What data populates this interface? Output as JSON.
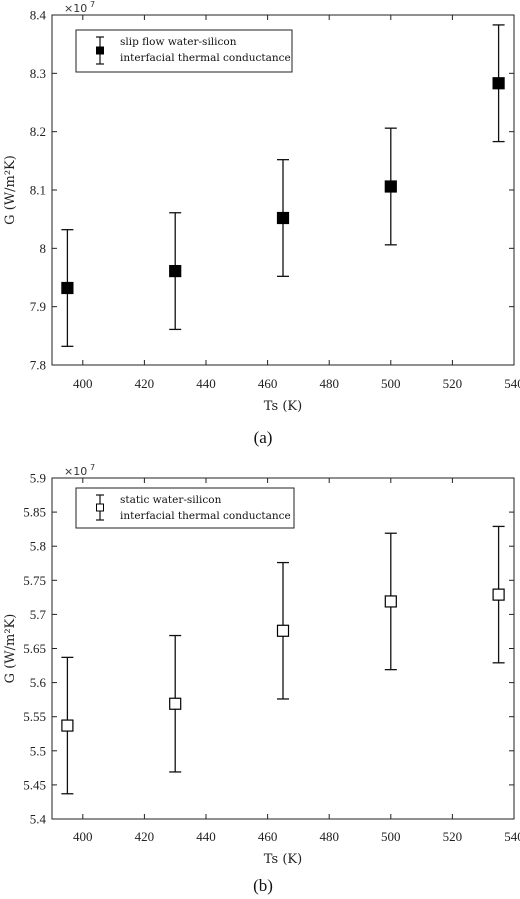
{
  "chart_data": [
    {
      "type": "scatter",
      "caption": "(a)",
      "ylabel": "G (W/m²K)",
      "xlabel": "Ts (K)",
      "multiplier": "×10",
      "multiplier_exp": "7",
      "xlim": [
        390,
        540
      ],
      "ylim": [
        7.8,
        8.4
      ],
      "xticks": [
        "400",
        "420",
        "440",
        "460",
        "480",
        "500",
        "520",
        "540"
      ],
      "yticks": [
        "7.8",
        "7.9",
        "8",
        "8.1",
        "8.2",
        "8.3",
        "8.4"
      ],
      "grid": false,
      "legend_position": "top-left",
      "legend_lines": [
        "slip flow water-silicon",
        "interfacial thermal conductance"
      ],
      "marker": "filled-square",
      "series": [
        {
          "x": [
            395,
            430,
            465,
            500,
            535
          ],
          "y": [
            7.932,
            7.961,
            8.052,
            8.106,
            8.283
          ],
          "err_low": [
            0.1,
            0.1,
            0.1,
            0.1,
            0.1
          ],
          "err_high": [
            0.1,
            0.1,
            0.1,
            0.1,
            0.1
          ]
        }
      ]
    },
    {
      "type": "scatter",
      "caption": "(b)",
      "ylabel": "G (W/m²K)",
      "xlabel": "Ts (K)",
      "multiplier": "×10",
      "multiplier_exp": "7",
      "xlim": [
        390,
        540
      ],
      "ylim": [
        5.4,
        5.9
      ],
      "xticks": [
        "400",
        "420",
        "440",
        "460",
        "480",
        "500",
        "520",
        "540"
      ],
      "yticks": [
        "5.4",
        "5.45",
        "5.5",
        "5.55",
        "5.6",
        "5.65",
        "5.7",
        "5.75",
        "5.8",
        "5.85",
        "5.9"
      ],
      "grid": false,
      "legend_position": "top-left",
      "legend_lines": [
        "static water-silicon",
        "interfacial thermal conductance"
      ],
      "marker": "open-square",
      "series": [
        {
          "x": [
            395,
            430,
            465,
            500,
            535
          ],
          "y": [
            5.537,
            5.569,
            5.676,
            5.719,
            5.729
          ],
          "err_low": [
            0.1,
            0.1,
            0.1,
            0.1,
            0.1
          ],
          "err_high": [
            0.1,
            0.1,
            0.1,
            0.1,
            0.1
          ]
        }
      ]
    }
  ]
}
